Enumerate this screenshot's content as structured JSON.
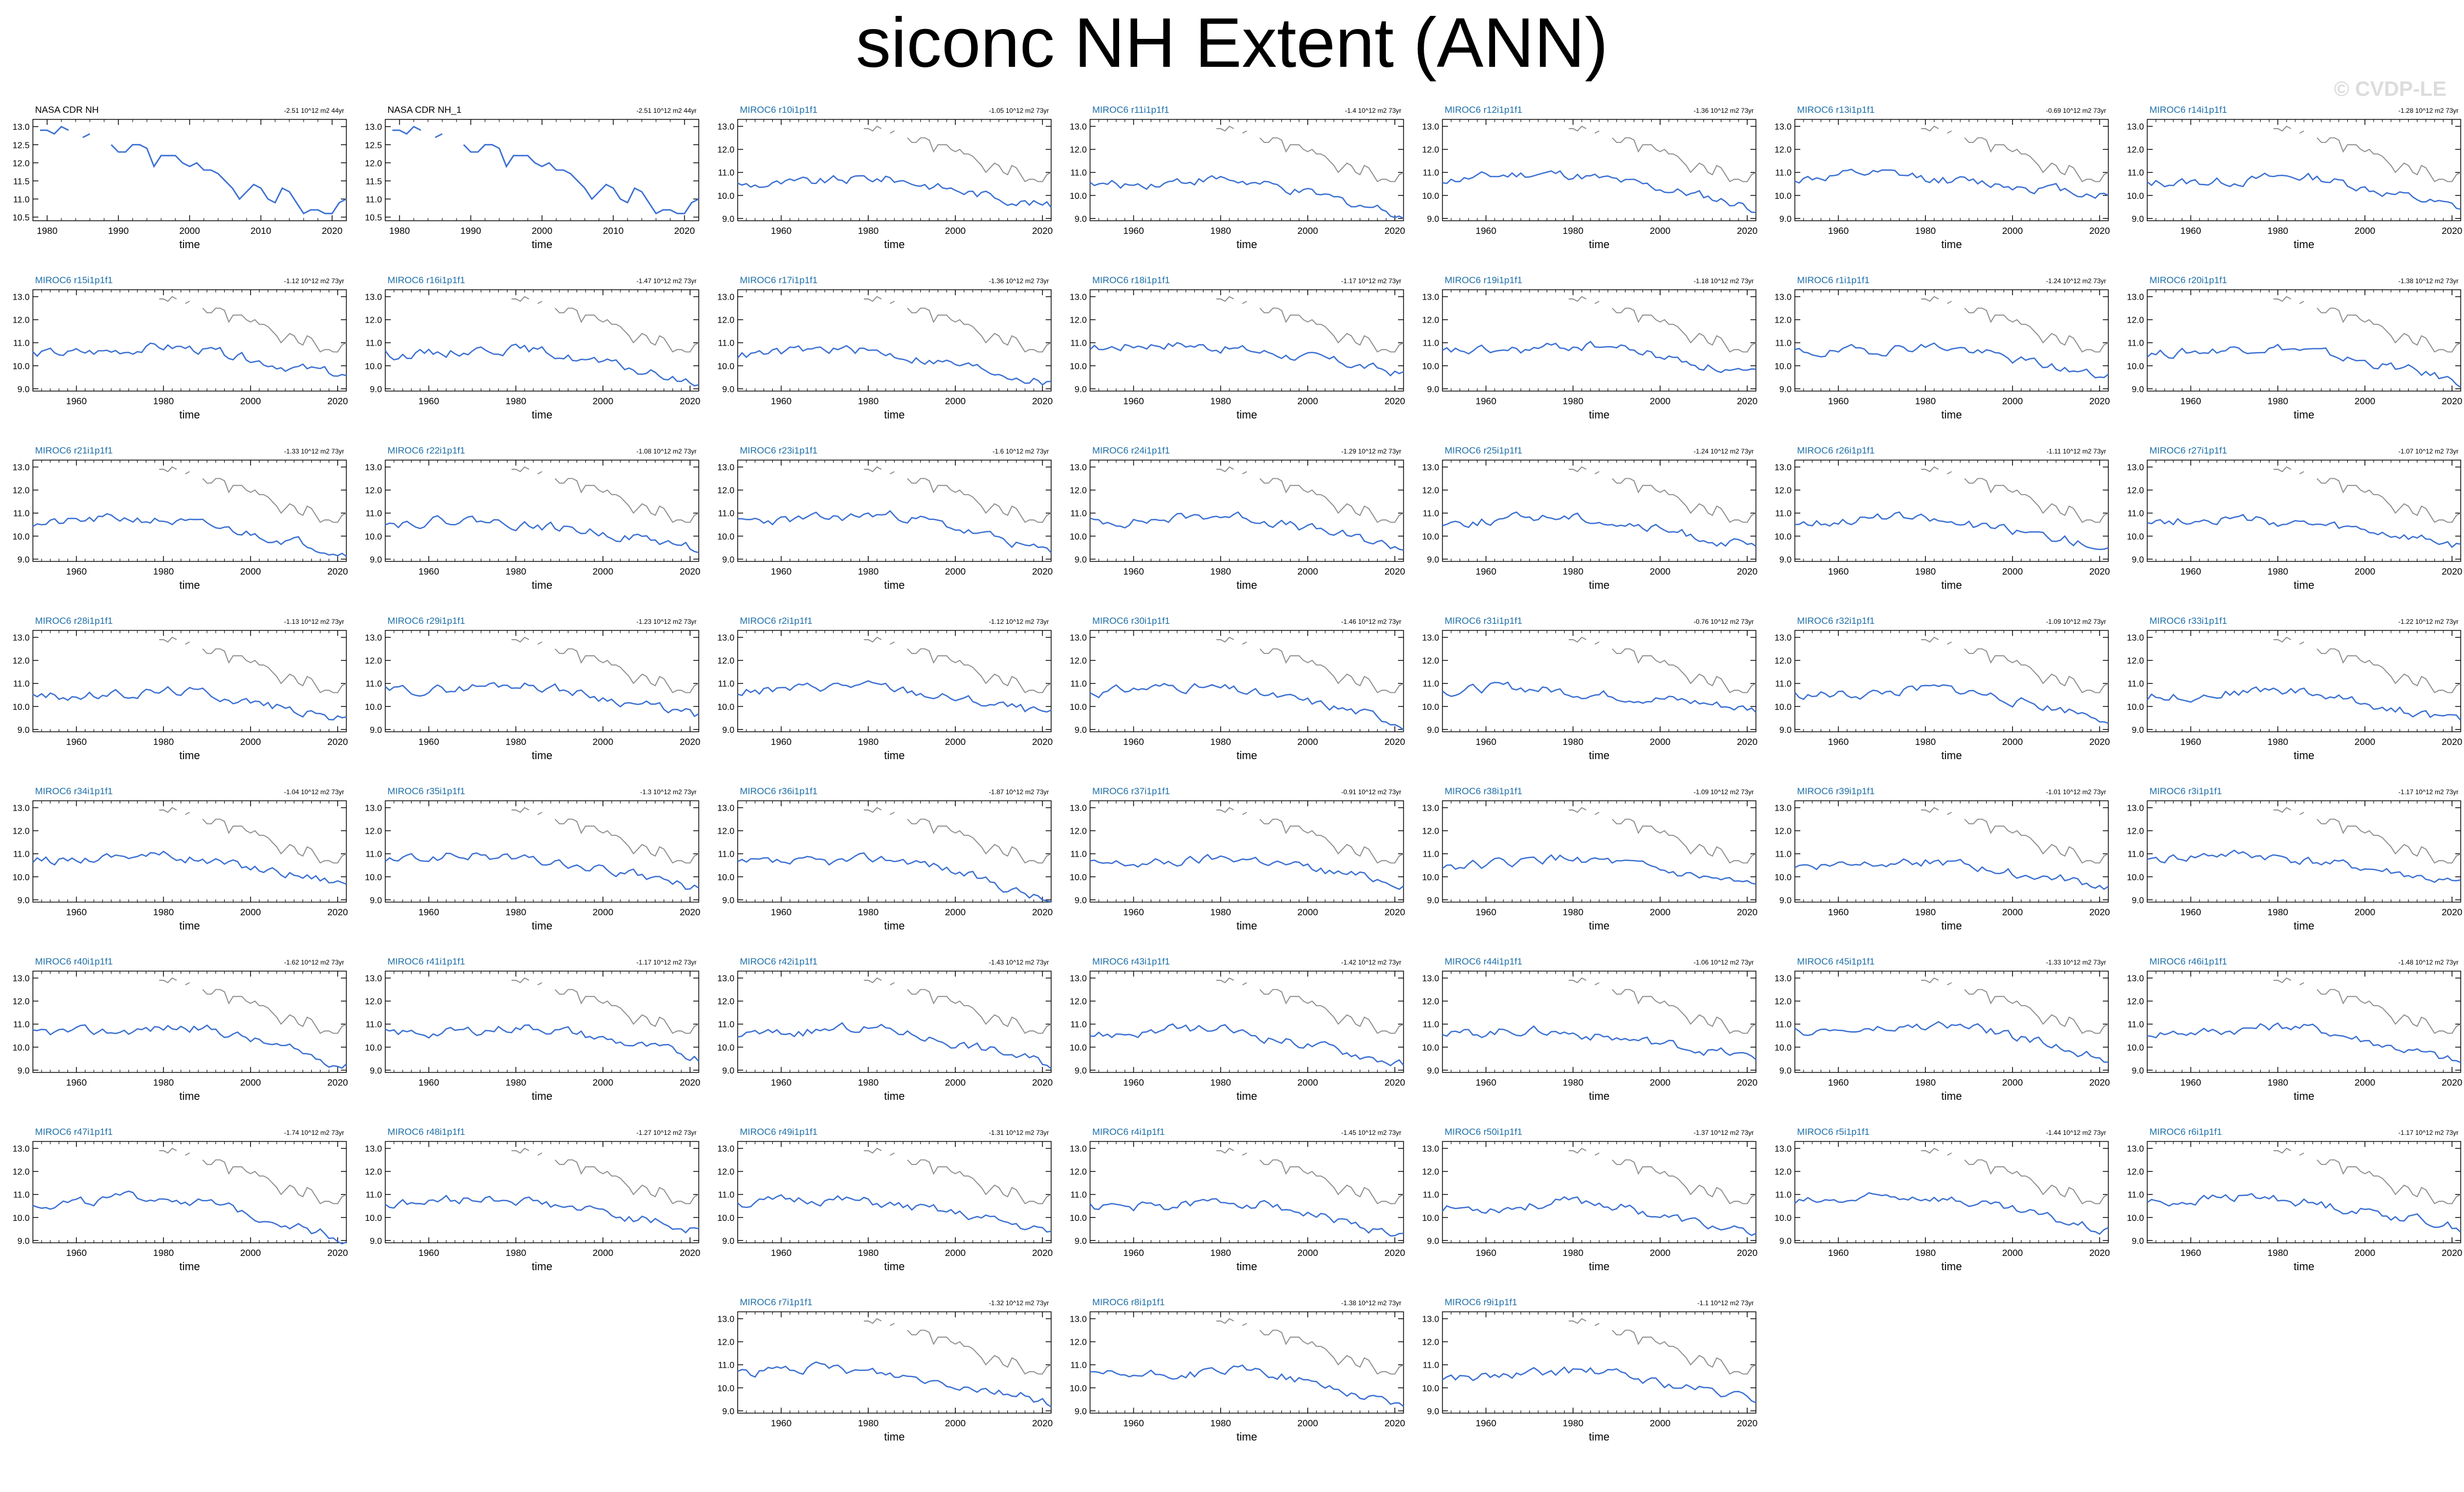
{
  "title": "siconc NH Extent (ANN)",
  "watermark": "© CVDP-LE",
  "colors": {
    "obs": "#000000",
    "model": "#3a6fd2",
    "obs_overlay": "#8a8a8a",
    "model_label": "#1f6fa8"
  },
  "chart_data": [
    {
      "type": "line",
      "title": "NASA CDR NH",
      "trend_label": "-2.51 10^12 m2 44yr",
      "xlabel": "time",
      "xticks": [
        1980,
        1990,
        2000,
        2010,
        2020
      ],
      "yticks": [
        10.5,
        11.0,
        11.5,
        12.0,
        12.5,
        13.0
      ],
      "ylim": [
        10.4,
        13.2
      ],
      "xlim": [
        1978,
        2022
      ],
      "series": [
        {
          "x": [
            1979,
            1980,
            1981,
            1982,
            1983,
            1984,
            1985,
            1986,
            1988,
            1989,
            1990,
            1991,
            1992,
            1993,
            1994,
            1995,
            1996,
            1997,
            1998,
            1999,
            2000,
            2001,
            2002,
            2003,
            2004,
            2005,
            2006,
            2007,
            2008,
            2009,
            2010,
            2011,
            2012,
            2013,
            2014,
            2015,
            2016,
            2017,
            2018,
            2019,
            2020,
            2021,
            2022
          ],
          "y": [
            12.9,
            12.9,
            12.8,
            13.0,
            12.9,
            null,
            12.7,
            12.8,
            null,
            12.5,
            12.3,
            12.3,
            12.5,
            12.5,
            12.4,
            11.9,
            12.2,
            12.2,
            12.2,
            12.0,
            11.9,
            12.0,
            11.8,
            11.8,
            11.7,
            11.5,
            11.3,
            11.0,
            11.2,
            11.4,
            11.3,
            11.0,
            10.9,
            11.3,
            11.2,
            10.9,
            10.6,
            10.7,
            10.7,
            10.6,
            10.6,
            10.9,
            11.0
          ]
        }
      ]
    },
    {
      "type": "line",
      "title": "NASA CDR NH_1",
      "trend_label": "-2.51 10^12 m2 44yr",
      "xlabel": "time",
      "xticks": [
        1980,
        1990,
        2000,
        2010,
        2020
      ],
      "yticks": [
        10.5,
        11.0,
        11.5,
        12.0,
        12.5,
        13.0
      ],
      "ylim": [
        10.4,
        13.2
      ],
      "xlim": [
        1978,
        2022
      ],
      "series": [
        {
          "x": [
            1979,
            1980,
            1981,
            1982,
            1983,
            1984,
            1985,
            1986,
            1988,
            1989,
            1990,
            1991,
            1992,
            1993,
            1994,
            1995,
            1996,
            1997,
            1998,
            1999,
            2000,
            2001,
            2002,
            2003,
            2004,
            2005,
            2006,
            2007,
            2008,
            2009,
            2010,
            2011,
            2012,
            2013,
            2014,
            2015,
            2016,
            2017,
            2018,
            2019,
            2020,
            2021,
            2022
          ],
          "y": [
            12.9,
            12.9,
            12.8,
            13.0,
            12.9,
            null,
            12.7,
            12.8,
            null,
            12.5,
            12.3,
            12.3,
            12.5,
            12.5,
            12.4,
            11.9,
            12.2,
            12.2,
            12.2,
            12.0,
            11.9,
            12.0,
            11.8,
            11.8,
            11.7,
            11.5,
            11.3,
            11.0,
            11.2,
            11.4,
            11.3,
            11.0,
            10.9,
            11.3,
            11.2,
            10.9,
            10.6,
            10.7,
            10.7,
            10.6,
            10.6,
            10.9,
            11.0
          ]
        }
      ]
    },
    {
      "title": "MIROC6 r10i1p1f1",
      "trend_label": "-1.05 10^12 m2 73yr"
    },
    {
      "title": "MIROC6 r11i1p1f1",
      "trend_label": "-1.4 10^12 m2 73yr"
    },
    {
      "title": "MIROC6 r12i1p1f1",
      "trend_label": "-1.36 10^12 m2 73yr"
    },
    {
      "title": "MIROC6 r13i1p1f1",
      "trend_label": "-0.69 10^12 m2 73yr"
    },
    {
      "title": "MIROC6 r14i1p1f1",
      "trend_label": "-1.28 10^12 m2 73yr"
    },
    {
      "title": "MIROC6 r15i1p1f1",
      "trend_label": "-1.12 10^12 m2 73yr"
    },
    {
      "title": "MIROC6 r16i1p1f1",
      "trend_label": "-1.47 10^12 m2 73yr"
    },
    {
      "title": "MIROC6 r17i1p1f1",
      "trend_label": "-1.36 10^12 m2 73yr"
    },
    {
      "title": "MIROC6 r18i1p1f1",
      "trend_label": "-1.17 10^12 m2 73yr"
    },
    {
      "title": "MIROC6 r19i1p1f1",
      "trend_label": "-1.18 10^12 m2 73yr"
    },
    {
      "title": "MIROC6 r1i1p1f1",
      "trend_label": "-1.24 10^12 m2 73yr"
    },
    {
      "title": "MIROC6 r20i1p1f1",
      "trend_label": "-1.38 10^12 m2 73yr"
    },
    {
      "title": "MIROC6 r21i1p1f1",
      "trend_label": "-1.33 10^12 m2 73yr"
    },
    {
      "title": "MIROC6 r22i1p1f1",
      "trend_label": "-1.08 10^12 m2 73yr"
    },
    {
      "title": "MIROC6 r23i1p1f1",
      "trend_label": "-1.6 10^12 m2 73yr"
    },
    {
      "title": "MIROC6 r24i1p1f1",
      "trend_label": "-1.29 10^12 m2 73yr"
    },
    {
      "title": "MIROC6 r25i1p1f1",
      "trend_label": "-1.24 10^12 m2 73yr"
    },
    {
      "title": "MIROC6 r26i1p1f1",
      "trend_label": "-1.11 10^12 m2 73yr"
    },
    {
      "title": "MIROC6 r27i1p1f1",
      "trend_label": "-1.07 10^12 m2 73yr"
    },
    {
      "title": "MIROC6 r28i1p1f1",
      "trend_label": "-1.13 10^12 m2 73yr"
    },
    {
      "title": "MIROC6 r29i1p1f1",
      "trend_label": "-1.23 10^12 m2 73yr"
    },
    {
      "title": "MIROC6 r2i1p1f1",
      "trend_label": "-1.12 10^12 m2 73yr"
    },
    {
      "title": "MIROC6 r30i1p1f1",
      "trend_label": "-1.46 10^12 m2 73yr"
    },
    {
      "title": "MIROC6 r31i1p1f1",
      "trend_label": "-0.76 10^12 m2 73yr"
    },
    {
      "title": "MIROC6 r32i1p1f1",
      "trend_label": "-1.09 10^12 m2 73yr"
    },
    {
      "title": "MIROC6 r33i1p1f1",
      "trend_label": "-1.22 10^12 m2 73yr"
    },
    {
      "title": "MIROC6 r34i1p1f1",
      "trend_label": "-1.04 10^12 m2 73yr"
    },
    {
      "title": "MIROC6 r35i1p1f1",
      "trend_label": "-1.3 10^12 m2 73yr"
    },
    {
      "title": "MIROC6 r36i1p1f1",
      "trend_label": "-1.87 10^12 m2 73yr"
    },
    {
      "title": "MIROC6 r37i1p1f1",
      "trend_label": "-0.91 10^12 m2 73yr"
    },
    {
      "title": "MIROC6 r38i1p1f1",
      "trend_label": "-1.09 10^12 m2 73yr"
    },
    {
      "title": "MIROC6 r39i1p1f1",
      "trend_label": "-1.01 10^12 m2 73yr"
    },
    {
      "title": "MIROC6 r3i1p1f1",
      "trend_label": "-1.17 10^12 m2 73yr"
    },
    {
      "title": "MIROC6 r40i1p1f1",
      "trend_label": "-1.62 10^12 m2 73yr"
    },
    {
      "title": "MIROC6 r41i1p1f1",
      "trend_label": "-1.17 10^12 m2 73yr"
    },
    {
      "title": "MIROC6 r42i1p1f1",
      "trend_label": "-1.43 10^12 m2 73yr"
    },
    {
      "title": "MIROC6 r43i1p1f1",
      "trend_label": "-1.42 10^12 m2 73yr"
    },
    {
      "title": "MIROC6 r44i1p1f1",
      "trend_label": "-1.06 10^12 m2 73yr"
    },
    {
      "title": "MIROC6 r45i1p1f1",
      "trend_label": "-1.33 10^12 m2 73yr"
    },
    {
      "title": "MIROC6 r46i1p1f1",
      "trend_label": "-1.48 10^12 m2 73yr"
    },
    {
      "title": "MIROC6 r47i1p1f1",
      "trend_label": "-1.74 10^12 m2 73yr"
    },
    {
      "title": "MIROC6 r48i1p1f1",
      "trend_label": "-1.27 10^12 m2 73yr"
    },
    {
      "title": "MIROC6 r49i1p1f1",
      "trend_label": "-1.31 10^12 m2 73yr"
    },
    {
      "title": "MIROC6 r4i1p1f1",
      "trend_label": "-1.45 10^12 m2 73yr"
    },
    {
      "title": "MIROC6 r50i1p1f1",
      "trend_label": "-1.37 10^12 m2 73yr"
    },
    {
      "title": "MIROC6 r5i1p1f1",
      "trend_label": "-1.44 10^12 m2 73yr"
    },
    {
      "title": "MIROC6 r6i1p1f1",
      "trend_label": "-1.17 10^12 m2 73yr"
    },
    {
      "title": "MIROC6 r7i1p1f1",
      "trend_label": "-1.32 10^12 m2 73yr"
    },
    {
      "title": "MIROC6 r8i1p1f1",
      "trend_label": "-1.38 10^12 m2 73yr"
    },
    {
      "title": "MIROC6 r9i1p1f1",
      "trend_label": "-1.1 10^12 m2 73yr"
    }
  ],
  "model_panel_defaults": {
    "type": "line",
    "xlabel": "time",
    "xticks": [
      1960,
      1980,
      2000,
      2020
    ],
    "yticks": [
      9.0,
      10.0,
      11.0,
      12.0,
      13.0
    ],
    "ylim": [
      8.9,
      13.3
    ],
    "xlim": [
      1950,
      2022
    ],
    "approx_model_series": {
      "x": [
        1950,
        1955,
        1960,
        1965,
        1970,
        1975,
        1980,
        1985,
        1990,
        1995,
        2000,
        2005,
        2010,
        2015,
        2020,
        2022
      ],
      "y": [
        10.6,
        10.7,
        10.5,
        10.6,
        10.7,
        10.8,
        10.8,
        10.6,
        10.5,
        10.5,
        10.3,
        10.2,
        9.9,
        9.8,
        9.5,
        9.4
      ]
    },
    "obs_overlay": {
      "x": [
        1979,
        1980,
        1981,
        1982,
        1983,
        1984,
        1985,
        1986,
        1988,
        1989,
        1990,
        1991,
        1992,
        1993,
        1994,
        1995,
        1996,
        1997,
        1998,
        1999,
        2000,
        2001,
        2002,
        2003,
        2004,
        2005,
        2006,
        2007,
        2008,
        2009,
        2010,
        2011,
        2012,
        2013,
        2014,
        2015,
        2016,
        2017,
        2018,
        2019,
        2020,
        2021,
        2022
      ],
      "y": [
        12.9,
        12.9,
        12.8,
        13.0,
        12.9,
        null,
        12.7,
        12.8,
        null,
        12.5,
        12.3,
        12.3,
        12.5,
        12.5,
        12.4,
        11.9,
        12.2,
        12.2,
        12.2,
        12.0,
        11.9,
        12.0,
        11.8,
        11.8,
        11.7,
        11.5,
        11.3,
        11.0,
        11.2,
        11.4,
        11.3,
        11.0,
        10.9,
        11.3,
        11.2,
        10.9,
        10.6,
        10.7,
        10.7,
        10.6,
        10.6,
        10.9,
        11.0
      ]
    }
  }
}
